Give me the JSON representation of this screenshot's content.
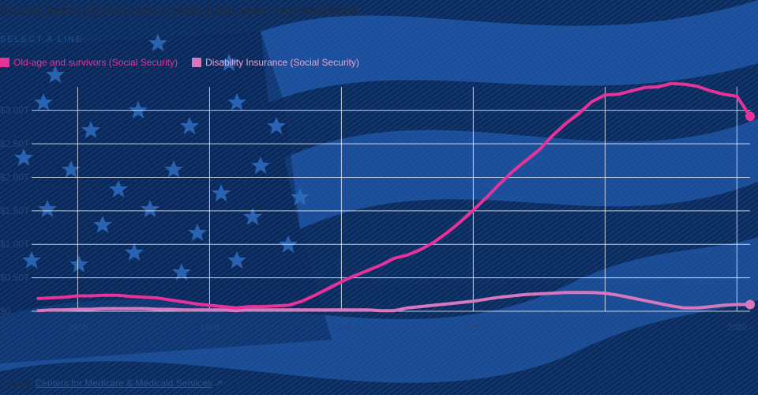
{
  "header": {
    "title": "Social Security insurance trust fund year-end balances",
    "select_label": "SELECT A LINE"
  },
  "legend": [
    {
      "label": "Old-age and survivors (Social Security)",
      "color": "#e8329a"
    },
    {
      "label": "Disability Insurance (Social Security)",
      "color": "#d777bd"
    }
  ],
  "footer": {
    "source_prefix": "Source: ",
    "source_link": "Centers for Medicare & Medicaid Services",
    "source_icon": "external-link-icon"
  },
  "chart_data": {
    "type": "line",
    "xlim": [
      1966.5,
      2021
    ],
    "ylim": [
      0,
      3.35
    ],
    "x_ticks": [
      1970,
      1980,
      1990,
      2000,
      2010,
      2020
    ],
    "y_ticks": [
      0,
      0.5,
      1.0,
      1.5,
      2.0,
      2.5,
      3.0
    ],
    "y_tick_labels": [
      "$0",
      "$0.50T",
      "$1.00T",
      "$1.50T",
      "$2.00T",
      "$2.50T",
      "$3.00T"
    ],
    "grid": true,
    "x": [
      1967,
      1968,
      1969,
      1970,
      1971,
      1972,
      1973,
      1974,
      1975,
      1976,
      1977,
      1978,
      1979,
      1980,
      1981,
      1982,
      1983,
      1984,
      1985,
      1986,
      1987,
      1988,
      1989,
      1990,
      1991,
      1992,
      1993,
      1994,
      1995,
      1996,
      1997,
      1998,
      1999,
      2000,
      2001,
      2002,
      2003,
      2004,
      2005,
      2006,
      2007,
      2008,
      2009,
      2010,
      2011,
      2012,
      2013,
      2014,
      2015,
      2016,
      2017,
      2018,
      2019,
      2020,
      2021
    ],
    "series": [
      {
        "name": "Old-age and survivors (Social Security)",
        "color": "#e8329a",
        "values": [
          0.19,
          0.2,
          0.21,
          0.23,
          0.23,
          0.24,
          0.24,
          0.22,
          0.21,
          0.2,
          0.17,
          0.14,
          0.11,
          0.09,
          0.07,
          0.05,
          0.07,
          0.07,
          0.08,
          0.09,
          0.15,
          0.24,
          0.34,
          0.44,
          0.53,
          0.61,
          0.69,
          0.79,
          0.84,
          0.92,
          1.03,
          1.17,
          1.33,
          1.51,
          1.7,
          1.9,
          2.09,
          2.25,
          2.41,
          2.62,
          2.8,
          2.95,
          3.13,
          3.23,
          3.24,
          3.29,
          3.34,
          3.35,
          3.4,
          3.39,
          3.36,
          3.29,
          3.24,
          3.21,
          2.91
        ]
      },
      {
        "name": "Disability Insurance (Social Security)",
        "color": "#d777bd",
        "values": [
          0.01,
          0.02,
          0.02,
          0.03,
          0.03,
          0.04,
          0.04,
          0.04,
          0.04,
          0.03,
          0.03,
          0.02,
          0.02,
          0.02,
          0.02,
          0.01,
          0.02,
          0.02,
          0.02,
          0.02,
          0.02,
          0.02,
          0.02,
          0.02,
          0.02,
          0.02,
          0.01,
          0.01,
          0.05,
          0.07,
          0.09,
          0.11,
          0.13,
          0.15,
          0.18,
          0.21,
          0.23,
          0.25,
          0.26,
          0.27,
          0.28,
          0.28,
          0.28,
          0.27,
          0.24,
          0.2,
          0.16,
          0.12,
          0.08,
          0.05,
          0.05,
          0.07,
          0.09,
          0.1,
          0.1
        ]
      }
    ]
  }
}
